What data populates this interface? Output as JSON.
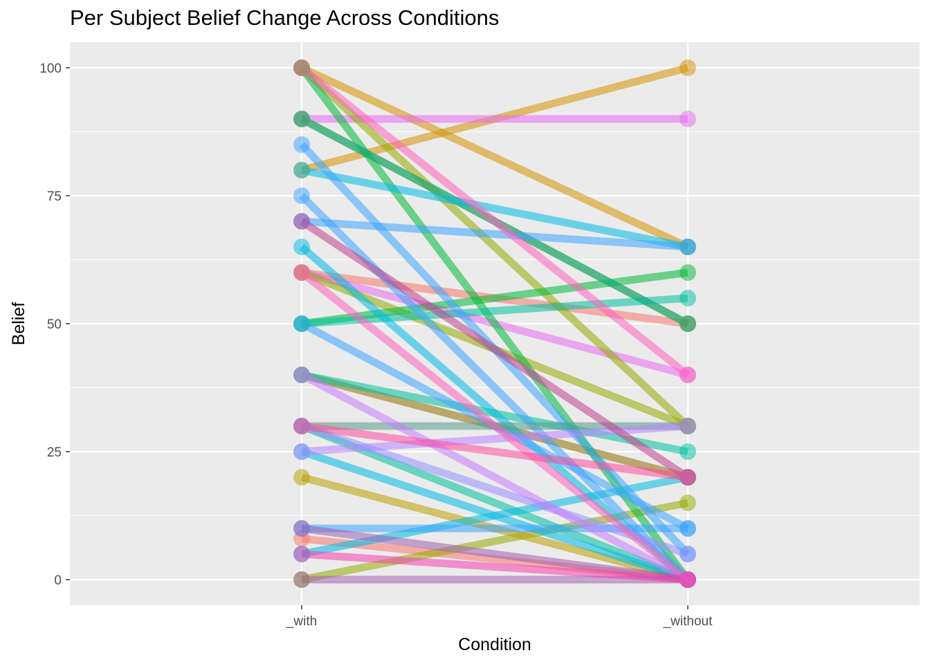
{
  "chart_data": {
    "type": "line",
    "title": "Per Subject Belief Change Across Conditions",
    "xlabel": "Condition",
    "ylabel": "Belief",
    "categories": [
      "_with",
      "_without"
    ],
    "ylim": [
      -5,
      105
    ],
    "yticks": [
      0,
      25,
      50,
      75,
      100
    ],
    "grid": true,
    "legend": "none",
    "series": [
      {
        "values": [
          80,
          100
        ],
        "color": "#D39200"
      },
      {
        "values": [
          100,
          65
        ],
        "color": "#D39200"
      },
      {
        "values": [
          60,
          50
        ],
        "color": "#F8766D"
      },
      {
        "values": [
          8,
          0
        ],
        "color": "#F8766D"
      },
      {
        "values": [
          90,
          90
        ],
        "color": "#E76BF3"
      },
      {
        "values": [
          60,
          40
        ],
        "color": "#E76BF3"
      },
      {
        "values": [
          40,
          20
        ],
        "color": "#E76BF3"
      },
      {
        "values": [
          100,
          30
        ],
        "color": "#93AA00"
      },
      {
        "values": [
          90,
          50
        ],
        "color": "#93AA00"
      },
      {
        "values": [
          60,
          30
        ],
        "color": "#93AA00"
      },
      {
        "values": [
          40,
          20
        ],
        "color": "#93AA00"
      },
      {
        "values": [
          0,
          15
        ],
        "color": "#93AA00"
      },
      {
        "values": [
          20,
          0
        ],
        "color": "#BA9E00"
      },
      {
        "values": [
          100,
          0
        ],
        "color": "#00BA38"
      },
      {
        "values": [
          50,
          60
        ],
        "color": "#00BA38"
      },
      {
        "values": [
          50,
          55
        ],
        "color": "#00C19F"
      },
      {
        "values": [
          40,
          25
        ],
        "color": "#00C19F"
      },
      {
        "values": [
          30,
          0
        ],
        "color": "#00C19F"
      },
      {
        "values": [
          90,
          50
        ],
        "color": "#00A9A0"
      },
      {
        "values": [
          80,
          65
        ],
        "color": "#00B9E3"
      },
      {
        "values": [
          65,
          0
        ],
        "color": "#00B9E3"
      },
      {
        "values": [
          25,
          0
        ],
        "color": "#00B9E3"
      },
      {
        "values": [
          5,
          20
        ],
        "color": "#00B9E3"
      },
      {
        "values": [
          85,
          5
        ],
        "color": "#3DA4FF"
      },
      {
        "values": [
          75,
          0
        ],
        "color": "#3DA4FF"
      },
      {
        "values": [
          70,
          65
        ],
        "color": "#3DA4FF"
      },
      {
        "values": [
          50,
          10
        ],
        "color": "#3DA4FF"
      },
      {
        "values": [
          10,
          10
        ],
        "color": "#3DA4FF"
      },
      {
        "values": [
          30,
          30
        ],
        "color": "#5A9A8A"
      },
      {
        "values": [
          25,
          30
        ],
        "color": "#B983FF"
      },
      {
        "values": [
          30,
          5
        ],
        "color": "#9590FF"
      },
      {
        "values": [
          40,
          0
        ],
        "color": "#C77CFF"
      },
      {
        "values": [
          10,
          0
        ],
        "color": "#A05FB0"
      },
      {
        "values": [
          0,
          0
        ],
        "color": "#A05FB0"
      },
      {
        "values": [
          70,
          20
        ],
        "color": "#C0418D"
      },
      {
        "values": [
          100,
          40
        ],
        "color": "#FF62BC"
      },
      {
        "values": [
          60,
          0
        ],
        "color": "#FF62BC"
      },
      {
        "values": [
          30,
          20
        ],
        "color": "#FF4D9E"
      },
      {
        "values": [
          5,
          0
        ],
        "color": "#F53FAF"
      }
    ]
  }
}
